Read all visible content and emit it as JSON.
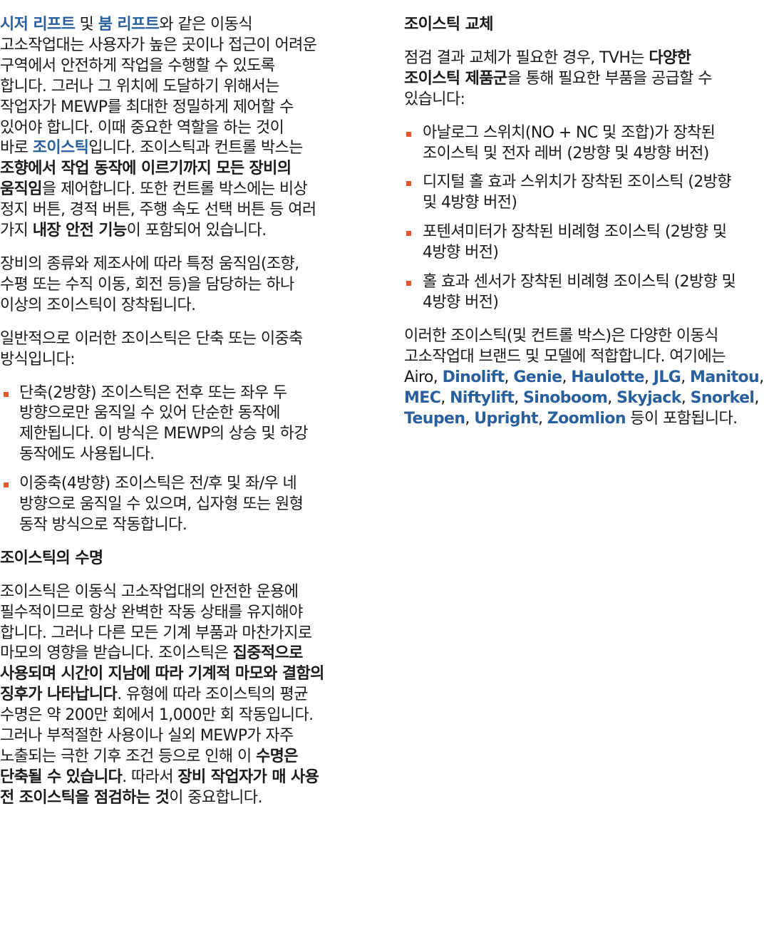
{
  "colors": {
    "link": "#2a5f9e",
    "bullet": "#e8552a"
  },
  "left": [
    {
      "type": "p",
      "segs": [
        {
          "k": "a",
          "t": "시저 리프트"
        },
        {
          "k": "t",
          "t": " 및 "
        },
        {
          "k": "a",
          "t": "붐 리프트"
        },
        {
          "k": "t",
          "t": "와 같은 이동식\n고소작업대는 사용자가 높은 곳이나 접근이 어려운\n구역에서 안전하게 작업을 수행할 수 있도록\n합니다. 그러나 그 위치에 도달하기 위해서는\n작업자가 MEWP를 최대한 정밀하게 제어할 수\n있어야 합니다. 이때 중요한 역할을 하는 것이\n바로 "
        },
        {
          "k": "a",
          "t": "조이스틱"
        },
        {
          "k": "t",
          "t": "입니다. 조이스틱과 컨트롤 박스는\n"
        },
        {
          "k": "b",
          "t": "조향에서 작업 동작에 이르기까지 모든 장비의\n움직임"
        },
        {
          "k": "t",
          "t": "을 제어합니다. 또한 컨트롤 박스에는 비상\n정지 버튼, 경적 버튼, 주행 속도 선택 버튼 등 여러\n가지 "
        },
        {
          "k": "b",
          "t": "내장 안전 기능"
        },
        {
          "k": "t",
          "t": "이 포함되어 있습니다."
        }
      ]
    },
    {
      "type": "p",
      "segs": [
        {
          "k": "t",
          "t": "장비의 종류와 제조사에 따라 특정 움직임(조향,\n수평 또는 수직 이동, 회전 등)을 담당하는 하나\n이상의 조이스틱이 장착됩니다."
        }
      ]
    },
    {
      "type": "p",
      "segs": [
        {
          "k": "t",
          "t": "일반적으로 이러한 조이스틱은 단축 또는 이중축\n방식입니다:"
        }
      ]
    },
    {
      "type": "ul",
      "items": [
        "단축(2방향) 조이스틱은 전후 또는 좌우 두\n방향으로만 움직일 수 있어 단순한 동작에\n제한됩니다. 이 방식은 MEWP의 상승 및 하강\n동작에도 사용됩니다.",
        "이중축(4방향) 조이스틱은 전/후 및 좌/우 네\n방향으로 움직일 수 있으며, 십자형 또는 원형\n동작 방식으로 작동합니다."
      ]
    },
    {
      "type": "h",
      "text": "조이스틱의 수명"
    },
    {
      "type": "p",
      "segs": [
        {
          "k": "t",
          "t": "조이스틱은 이동식 고소작업대의 안전한 운용에\n필수적이므로 항상 완벽한 작동 상태를 유지해야\n합니다. 그러나 다른 모든 기계 부품과 마찬가지로\n마모의 영향을 받습니다. 조이스틱은 "
        },
        {
          "k": "b",
          "t": "집중적으로\n사용되며 시간이 지남에 따라 기계적 마모와 결함의\n징후가 나타납니다"
        },
        {
          "k": "t",
          "t": ". 유형에 따라 조이스틱의 평균\n수명은 약 200만 회에서 1,000만 회 작동입니다.\n그러나 부적절한 사용이나 실외 MEWP가 자주\n노출되는 극한 기후 조건 등으로 인해 이 "
        },
        {
          "k": "b",
          "t": "수명은\n단축될 수 있습니다"
        },
        {
          "k": "t",
          "t": ". 따라서 "
        },
        {
          "k": "b",
          "t": "장비 작업자가 매 사용\n전 조이스틱을 점검하는 것"
        },
        {
          "k": "t",
          "t": "이 중요합니다."
        }
      ]
    }
  ],
  "right": [
    {
      "type": "h",
      "text": "조이스틱 교체"
    },
    {
      "type": "p",
      "segs": [
        {
          "k": "t",
          "t": "점검 결과 교체가 필요한 경우, TVH는 "
        },
        {
          "k": "b",
          "t": "다양한\n조이스틱 제품군"
        },
        {
          "k": "t",
          "t": "을 통해 필요한 부품을 공급할 수\n있습니다:"
        }
      ]
    },
    {
      "type": "ul",
      "items": [
        "아날로그 스위치(NO + NC 및 조합)가 장착된\n조이스틱 및 전자 레버 (2방향 및 4방향 버전)",
        "디지털 홀 효과 스위치가 장착된 조이스틱 (2방향\n및 4방향 버전)",
        "포텐셔미터가 장착된 비례형 조이스틱 (2방향 및\n4방향 버전)",
        "홀 효과 센서가 장착된 비례형 조이스틱 (2방향 및\n4방향 버전)"
      ]
    },
    {
      "type": "p",
      "segs": [
        {
          "k": "t",
          "t": "이러한 조이스틱(및 컨트롤 박스)은 다양한 이동식\n고소작업대 브랜드 및 모델에 적합합니다. 여기에는\nAiro, "
        },
        {
          "k": "a",
          "t": "Dinolift"
        },
        {
          "k": "t",
          "t": ", "
        },
        {
          "k": "a",
          "t": "Genie"
        },
        {
          "k": "t",
          "t": ", "
        },
        {
          "k": "a",
          "t": "Haulotte"
        },
        {
          "k": "t",
          "t": ", "
        },
        {
          "k": "a",
          "t": "JLG"
        },
        {
          "k": "t",
          "t": ", "
        },
        {
          "k": "a",
          "t": "Manitou"
        },
        {
          "k": "t",
          "t": ",\n"
        },
        {
          "k": "a",
          "t": "MEC"
        },
        {
          "k": "t",
          "t": ", "
        },
        {
          "k": "a",
          "t": "Niftylift"
        },
        {
          "k": "t",
          "t": ", "
        },
        {
          "k": "a",
          "t": "Sinoboom"
        },
        {
          "k": "t",
          "t": ", "
        },
        {
          "k": "a",
          "t": "Skyjack"
        },
        {
          "k": "t",
          "t": ", "
        },
        {
          "k": "a",
          "t": "Snorkel"
        },
        {
          "k": "t",
          "t": ",\n"
        },
        {
          "k": "a",
          "t": "Teupen"
        },
        {
          "k": "t",
          "t": ", "
        },
        {
          "k": "a",
          "t": "Upright"
        },
        {
          "k": "t",
          "t": ", "
        },
        {
          "k": "a",
          "t": "Zoomlion"
        },
        {
          "k": "t",
          "t": " 등이 포함됩니다."
        }
      ]
    }
  ]
}
